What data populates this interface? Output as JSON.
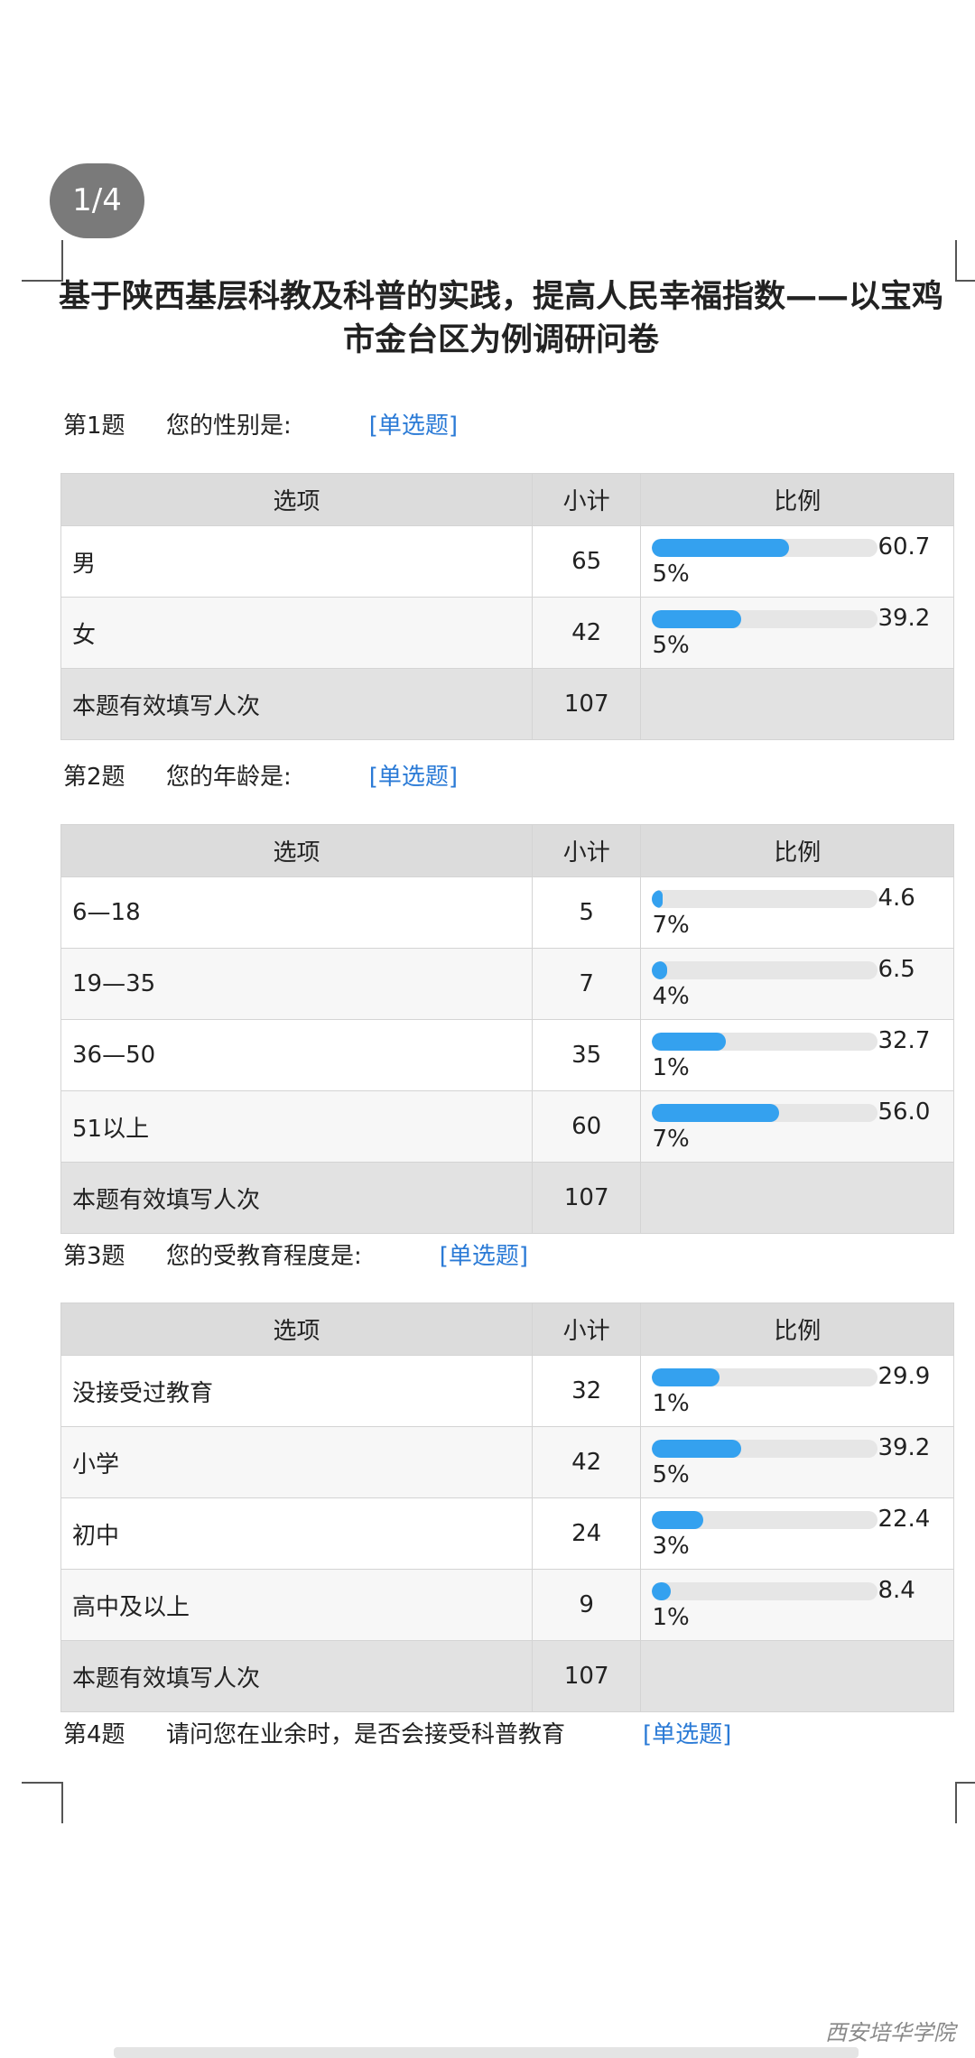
{
  "page_indicator": "1/4",
  "title": "基于陕西基层科教及科普的实践，提高人民幸福指数——以宝鸡市金台区为例调研问卷",
  "questions": [
    {
      "number": "第1题",
      "text": "您的性别是:",
      "type": "[单选题]",
      "table": {
        "headers": [
          "选项",
          "小计",
          "比例"
        ],
        "rows": [
          {
            "option": "男",
            "count": 65,
            "ratio": 60.75,
            "ratio_label": "60.75%"
          },
          {
            "option": "女",
            "count": 42,
            "ratio": 39.25,
            "ratio_label": "39.25%"
          }
        ],
        "total": {
          "label": "本题有效填写人次",
          "count": 107
        }
      }
    },
    {
      "number": "第2题",
      "text": "您的年龄是:",
      "type": "[单选题]",
      "table": {
        "headers": [
          "选项",
          "小计",
          "比例"
        ],
        "rows": [
          {
            "option": "6—18",
            "count": 5,
            "ratio": 4.67,
            "ratio_label": "4.67%"
          },
          {
            "option": "19—35",
            "count": 7,
            "ratio": 6.54,
            "ratio_label": "6.54%"
          },
          {
            "option": "36—50",
            "count": 35,
            "ratio": 32.71,
            "ratio_label": "32.71%"
          },
          {
            "option": "51以上",
            "count": 60,
            "ratio": 56.07,
            "ratio_label": "56.07%"
          }
        ],
        "total": {
          "label": "本题有效填写人次",
          "count": 107
        }
      }
    },
    {
      "number": "第3题",
      "text": "您的受教育程度是:",
      "type": "[单选题]",
      "table": {
        "headers": [
          "选项",
          "小计",
          "比例"
        ],
        "rows": [
          {
            "option": "没接受过教育",
            "count": 32,
            "ratio": 29.91,
            "ratio_label": "29.91%"
          },
          {
            "option": "小学",
            "count": 42,
            "ratio": 39.25,
            "ratio_label": "39.25%"
          },
          {
            "option": "初中",
            "count": 24,
            "ratio": 22.43,
            "ratio_label": "22.43%"
          },
          {
            "option": "高中及以上",
            "count": 9,
            "ratio": 8.41,
            "ratio_label": "8.41%"
          }
        ],
        "total": {
          "label": "本题有效填写人次",
          "count": 107
        }
      }
    },
    {
      "number": "第4题",
      "text": "请问您在业余时，是否会接受科普教育",
      "type": "[单选题]"
    }
  ],
  "watermark": "西安培华学院"
}
